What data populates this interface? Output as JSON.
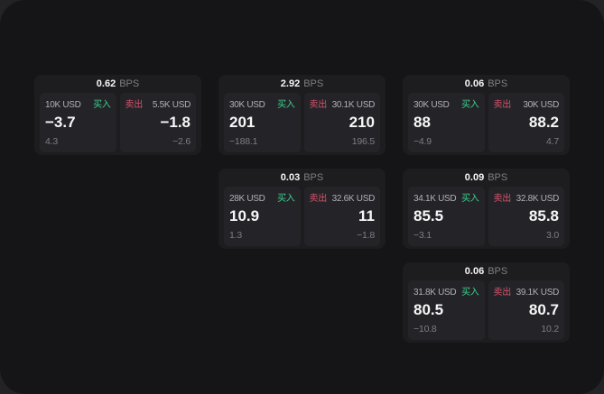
{
  "labels": {
    "buy": "买入",
    "sell": "卖出",
    "bps_unit": "BPS"
  },
  "colors": {
    "buy_green": "#3ecf8e",
    "sell_red": "#d6536c"
  },
  "cards": [
    {
      "row": 1,
      "col": 1,
      "bps": "0.62",
      "buy": {
        "size": "10K USD",
        "price": "−3.7",
        "delta": "4.3"
      },
      "sell": {
        "size": "5.5K USD",
        "price": "−1.8",
        "delta": "−2.6"
      }
    },
    {
      "row": 1,
      "col": 2,
      "bps": "2.92",
      "buy": {
        "size": "30K USD",
        "price": "201",
        "delta": "−188.1"
      },
      "sell": {
        "size": "30.1K USD",
        "price": "210",
        "delta": "196.5"
      }
    },
    {
      "row": 1,
      "col": 3,
      "bps": "0.06",
      "buy": {
        "size": "30K USD",
        "price": "88",
        "delta": "−4.9"
      },
      "sell": {
        "size": "30K USD",
        "price": "88.2",
        "delta": "4.7"
      }
    },
    {
      "row": 2,
      "col": 2,
      "bps": "0.03",
      "buy": {
        "size": "28K USD",
        "price": "10.9",
        "delta": "1.3"
      },
      "sell": {
        "size": "32.6K USD",
        "price": "11",
        "delta": "−1.8"
      }
    },
    {
      "row": 2,
      "col": 3,
      "bps": "0.09",
      "buy": {
        "size": "34.1K USD",
        "price": "85.5",
        "delta": "−3.1"
      },
      "sell": {
        "size": "32.8K USD",
        "price": "85.8",
        "delta": "3.0"
      }
    },
    {
      "row": 3,
      "col": 3,
      "bps": "0.06",
      "buy": {
        "size": "31.8K USD",
        "price": "80.5",
        "delta": "−10.8"
      },
      "sell": {
        "size": "39.1K USD",
        "price": "80.7",
        "delta": "10.2"
      }
    }
  ]
}
